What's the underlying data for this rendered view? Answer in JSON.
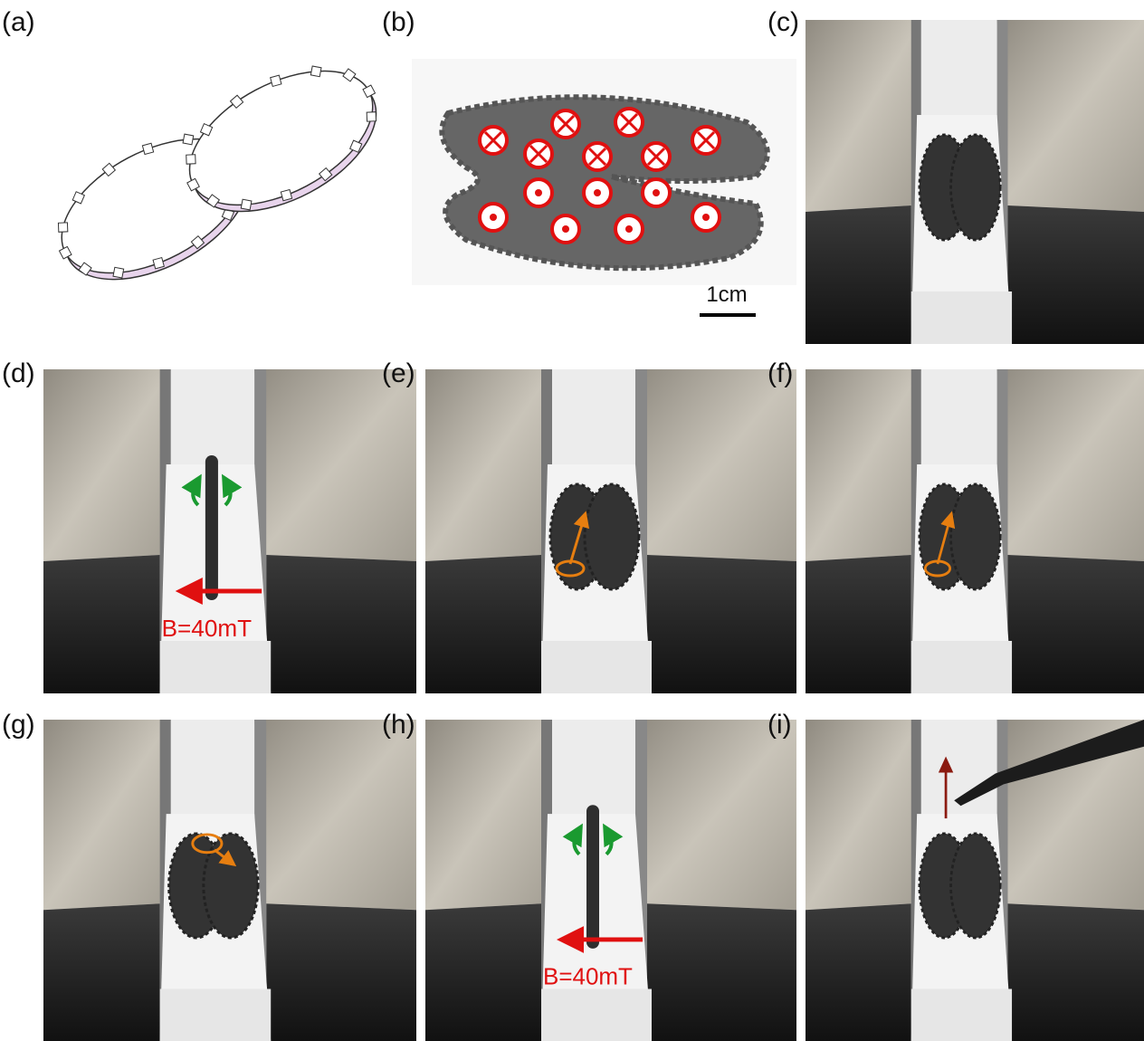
{
  "panels": [
    {
      "label": "(a)"
    },
    {
      "label": "(b)",
      "scale_bar": "1cm"
    },
    {
      "label": "(c)"
    },
    {
      "label": "(d)",
      "field": "B=40mT"
    },
    {
      "label": "(e)"
    },
    {
      "label": "(f)"
    },
    {
      "label": "(g)"
    },
    {
      "label": "(h)",
      "field": "B=40mT"
    },
    {
      "label": "(i)"
    }
  ]
}
